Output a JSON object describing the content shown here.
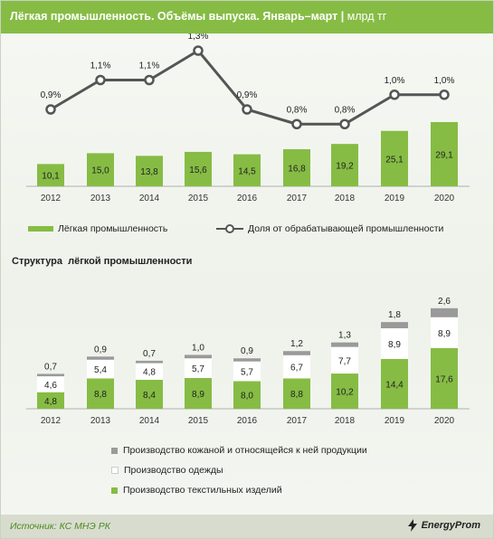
{
  "title": "Лёгкая промышленность. Объёмы выпуска. Январь–март",
  "unit": "млрд тг",
  "chart_data": [
    {
      "type": "bar",
      "categories": [
        "2012",
        "2013",
        "2014",
        "2015",
        "2016",
        "2017",
        "2018",
        "2019",
        "2020"
      ],
      "series": [
        {
          "name": "Лёгкая промышленность",
          "type": "bar",
          "values": [
            10.1,
            15.0,
            13.8,
            15.6,
            14.5,
            16.8,
            19.2,
            25.1,
            29.1
          ],
          "labels": [
            "10,1",
            "15,0",
            "13,8",
            "15,6",
            "14,5",
            "16,8",
            "19,2",
            "25,1",
            "29,1"
          ]
        },
        {
          "name": "Доля от обрабатывающей промышленности",
          "type": "line",
          "values": [
            0.9,
            1.1,
            1.1,
            1.3,
            0.9,
            0.8,
            0.8,
            1.0,
            1.0
          ],
          "labels": [
            "0,9%",
            "1,1%",
            "1,1%",
            "1,3%",
            "0,9%",
            "0,8%",
            "0,8%",
            "1,0%",
            "1,0%"
          ]
        }
      ]
    },
    {
      "type": "bar",
      "stacked": true,
      "title": "Структура  лёгкой промышленности",
      "categories": [
        "2012",
        "2013",
        "2014",
        "2015",
        "2016",
        "2017",
        "2018",
        "2019",
        "2020"
      ],
      "series": [
        {
          "name": "Производство текстильных изделий",
          "values": [
            4.8,
            8.8,
            8.4,
            8.9,
            8.0,
            8.8,
            10.2,
            14.4,
            17.6
          ],
          "labels": [
            "4,8",
            "8,8",
            "8,4",
            "8,9",
            "8,0",
            "8,8",
            "10,2",
            "14,4",
            "17,6"
          ]
        },
        {
          "name": "Производство одежды",
          "values": [
            4.6,
            5.4,
            4.8,
            5.7,
            5.7,
            6.7,
            7.7,
            8.9,
            8.9
          ],
          "labels": [
            "4,6",
            "5,4",
            "4,8",
            "5,7",
            "5,7",
            "6,7",
            "7,7",
            "8,9",
            "8,9"
          ]
        },
        {
          "name": "Производство кожаной и относящейся к ней продукции",
          "values": [
            0.7,
            0.9,
            0.7,
            1.0,
            0.9,
            1.2,
            1.3,
            1.8,
            2.6
          ],
          "labels": [
            "0,7",
            "0,9",
            "0,7",
            "1,0",
            "0,9",
            "1,2",
            "1,3",
            "1,8",
            "2,6"
          ]
        }
      ]
    }
  ],
  "colors": {
    "green": "#86bc44",
    "white": "#ffffff",
    "gray": "#9a9a9a",
    "line": "#555555"
  },
  "footer": {
    "source": "Источник: КС МНЭ РК",
    "brand": "EnergyProm"
  }
}
